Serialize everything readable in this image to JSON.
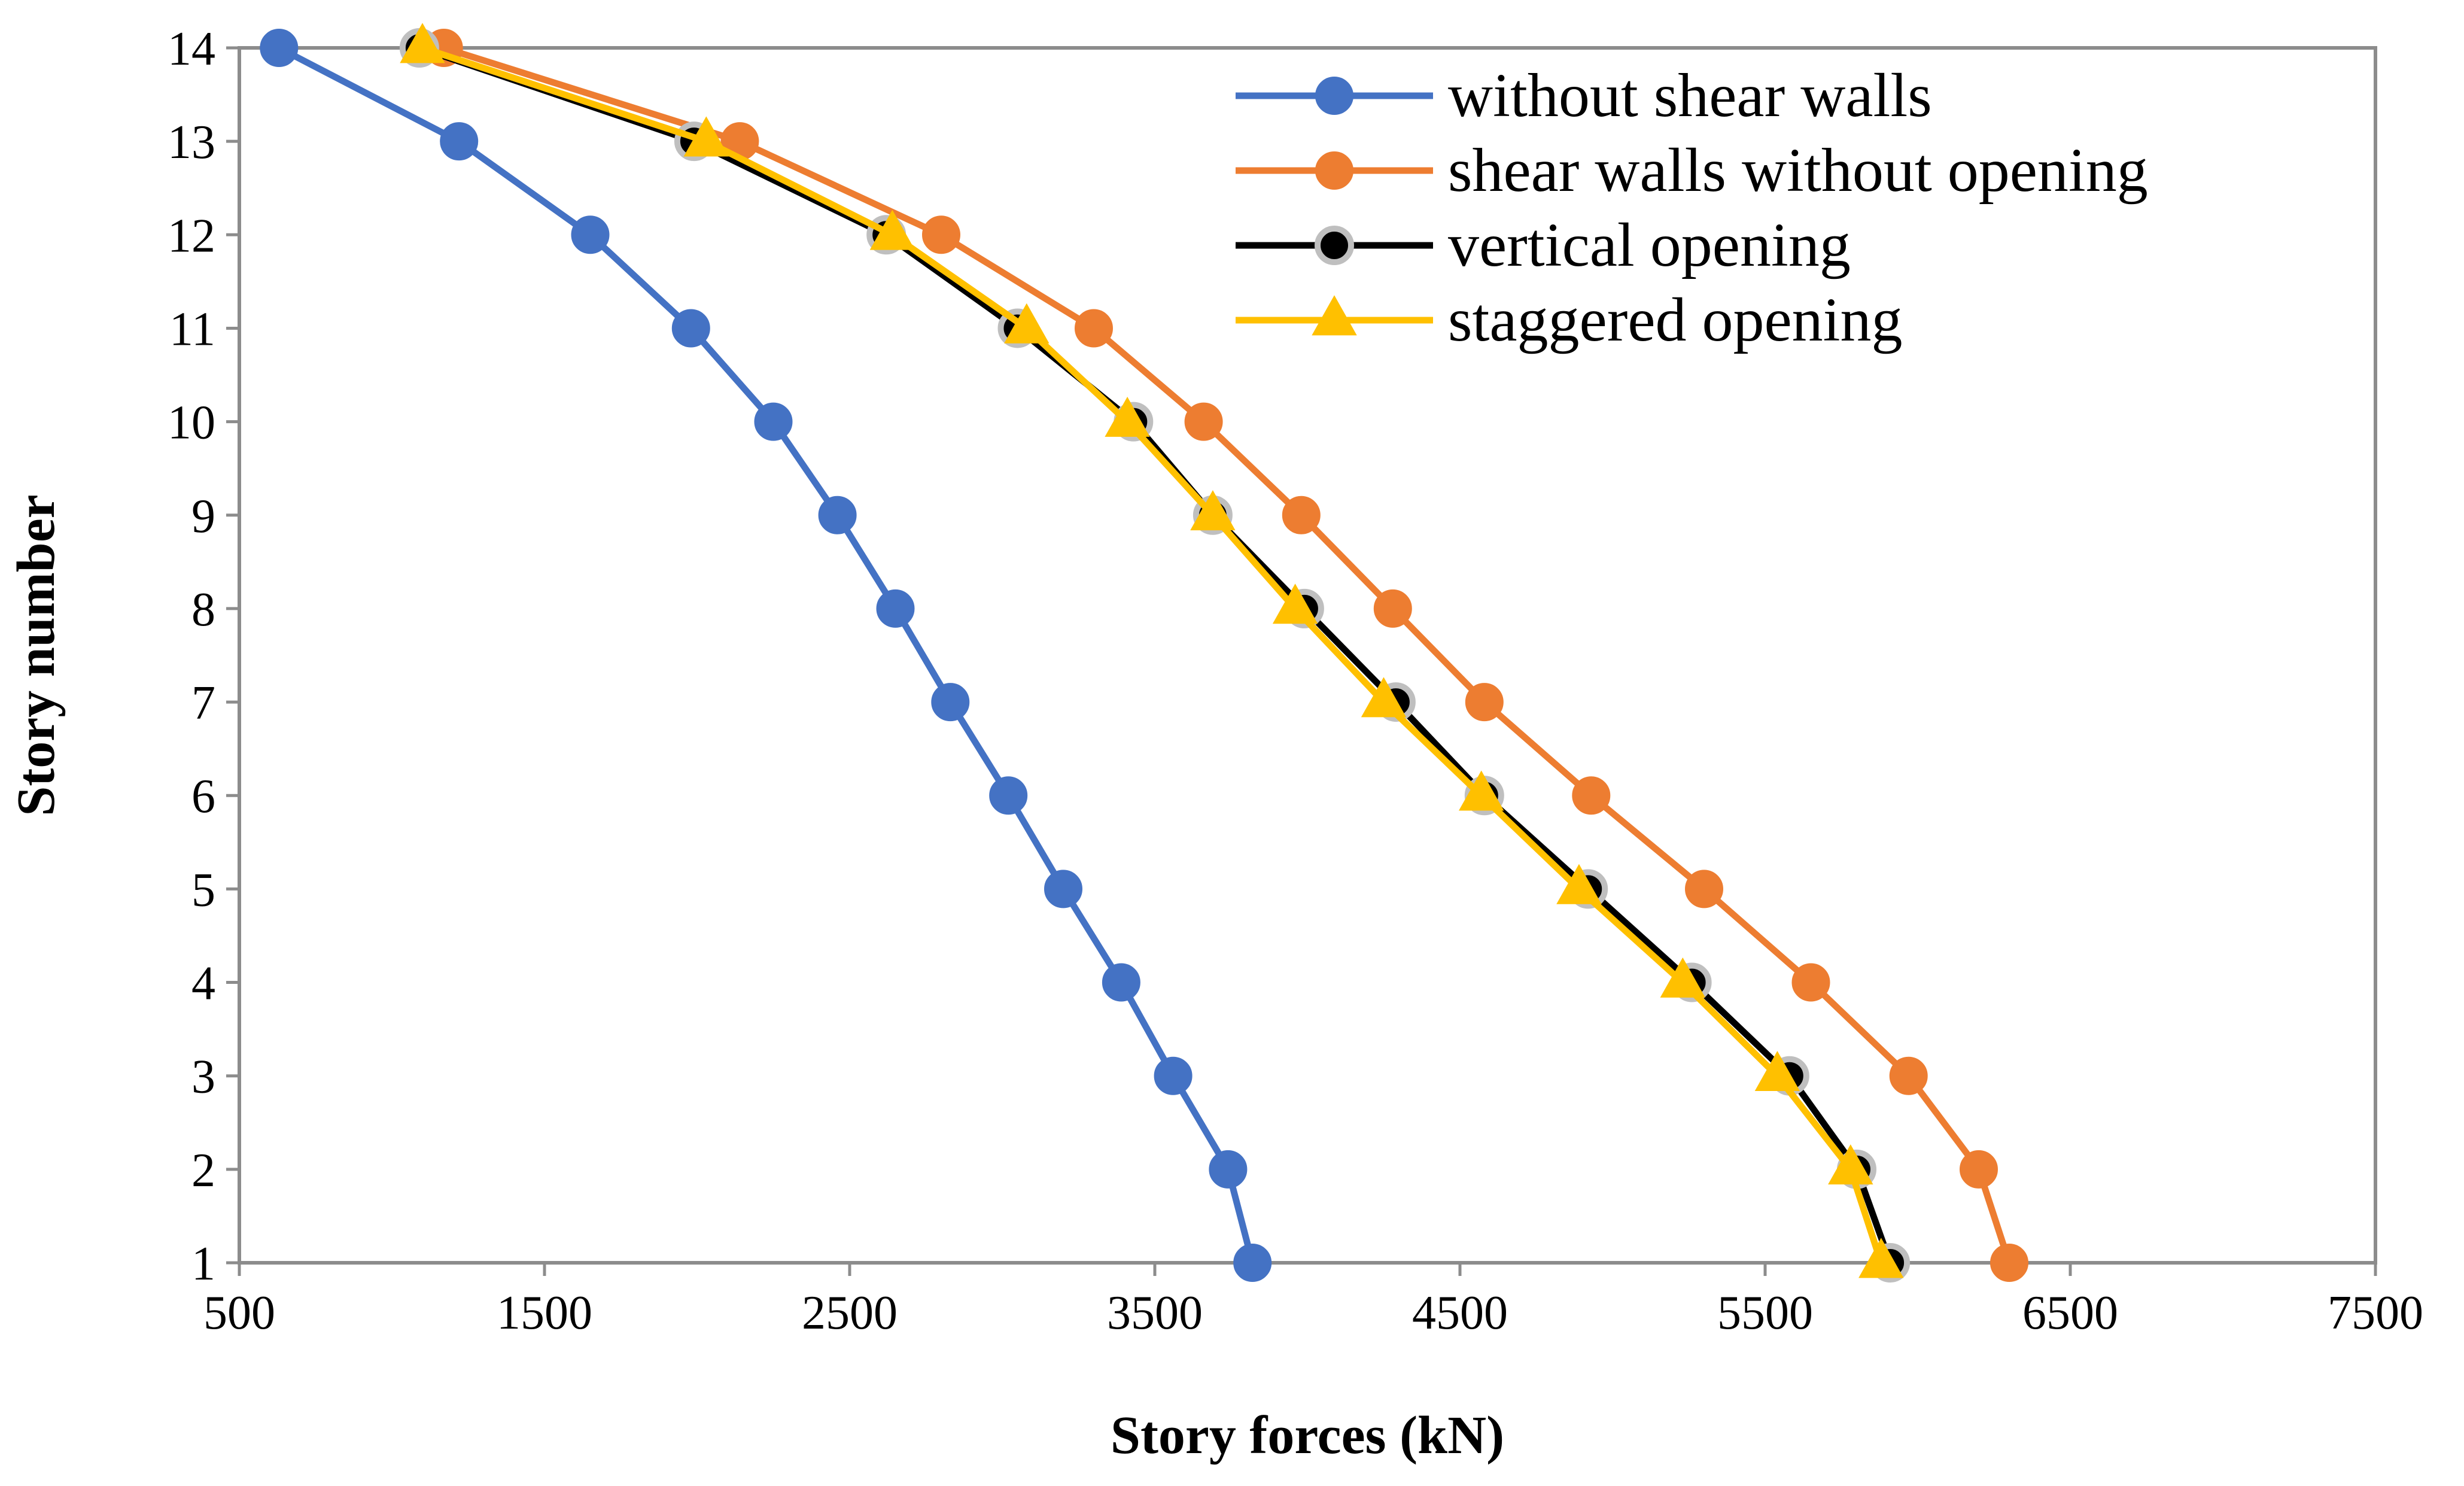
{
  "chart_data": {
    "type": "line",
    "title": "",
    "xlabel": "Story forces (kN)",
    "ylabel": "Story number",
    "xlim": [
      500,
      7500
    ],
    "ylim": [
      1,
      14
    ],
    "xticks": [
      500,
      1500,
      2500,
      3500,
      4500,
      5500,
      6500,
      7500
    ],
    "yticks": [
      1,
      2,
      3,
      4,
      5,
      6,
      7,
      8,
      9,
      10,
      11,
      12,
      13,
      14
    ],
    "grid": false,
    "legend_position": "top-right",
    "series": [
      {
        "name": "without shear walls",
        "color": "#4472C4",
        "marker": "circle",
        "points": [
          [
            3820,
            1
          ],
          [
            3740,
            2
          ],
          [
            3560,
            3
          ],
          [
            3390,
            4
          ],
          [
            3200,
            5
          ],
          [
            3020,
            6
          ],
          [
            2830,
            7
          ],
          [
            2650,
            8
          ],
          [
            2460,
            9
          ],
          [
            2250,
            10
          ],
          [
            1980,
            11
          ],
          [
            1650,
            12
          ],
          [
            1220,
            13
          ],
          [
            630,
            14
          ]
        ]
      },
      {
        "name": "shear walls without opening",
        "color": "#ED7D31",
        "marker": "circle",
        "points": [
          [
            6300,
            1
          ],
          [
            6200,
            2
          ],
          [
            5970,
            3
          ],
          [
            5650,
            4
          ],
          [
            5300,
            5
          ],
          [
            4930,
            6
          ],
          [
            4580,
            7
          ],
          [
            4280,
            8
          ],
          [
            3980,
            9
          ],
          [
            3660,
            10
          ],
          [
            3300,
            11
          ],
          [
            2800,
            12
          ],
          [
            2140,
            13
          ],
          [
            1170,
            14
          ]
        ]
      },
      {
        "name": "vertical opening",
        "color": "#000000",
        "marker": "circle",
        "points": [
          [
            5910,
            1
          ],
          [
            5800,
            2
          ],
          [
            5580,
            3
          ],
          [
            5260,
            4
          ],
          [
            4920,
            5
          ],
          [
            4580,
            6
          ],
          [
            4290,
            7
          ],
          [
            3990,
            8
          ],
          [
            3690,
            9
          ],
          [
            3430,
            10
          ],
          [
            3050,
            11
          ],
          [
            2620,
            12
          ],
          [
            1990,
            13
          ],
          [
            1090,
            14
          ]
        ]
      },
      {
        "name": "staggered opening",
        "color": "#FFC000",
        "marker": "triangle",
        "points": [
          [
            5880,
            1
          ],
          [
            5780,
            2
          ],
          [
            5540,
            3
          ],
          [
            5230,
            4
          ],
          [
            4890,
            5
          ],
          [
            4570,
            6
          ],
          [
            4250,
            7
          ],
          [
            3960,
            8
          ],
          [
            3690,
            9
          ],
          [
            3410,
            10
          ],
          [
            3080,
            11
          ],
          [
            2640,
            12
          ],
          [
            2030,
            13
          ],
          [
            1100,
            14
          ]
        ]
      }
    ]
  }
}
